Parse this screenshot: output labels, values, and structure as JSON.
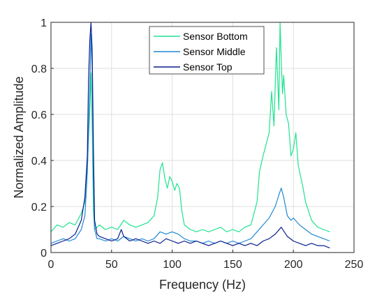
{
  "chart_data": {
    "type": "line",
    "xlabel": "Frequency (Hz)",
    "ylabel": "Normalized Amplitude",
    "xlim": [
      0,
      250
    ],
    "ylim": [
      0,
      1
    ],
    "x_ticks": [
      "0",
      "50",
      "100",
      "150",
      "200",
      "250"
    ],
    "y_ticks": [
      "0",
      "0.2",
      "0.4",
      "0.6",
      "0.8",
      "1"
    ],
    "grid": true,
    "legend": "top-center",
    "series": [
      {
        "name": "Sensor Bottom",
        "color": "#1de38f",
        "x": [
          0,
          5,
          10,
          15,
          20,
          25,
          28,
          30,
          32,
          33,
          34,
          35,
          36,
          38,
          40,
          45,
          50,
          55,
          60,
          65,
          70,
          75,
          80,
          85,
          88,
          90,
          92,
          94,
          96,
          98,
          100,
          102,
          104,
          106,
          108,
          110,
          115,
          120,
          125,
          130,
          135,
          140,
          145,
          150,
          155,
          160,
          165,
          170,
          172,
          175,
          178,
          180,
          182,
          184,
          186,
          188,
          189,
          190,
          191,
          192,
          194,
          196,
          198,
          200,
          202,
          204,
          206,
          208,
          210,
          215,
          220,
          225,
          230
        ],
        "y": [
          0.09,
          0.12,
          0.11,
          0.13,
          0.12,
          0.17,
          0.22,
          0.38,
          0.62,
          0.78,
          0.55,
          0.18,
          0.1,
          0.11,
          0.12,
          0.1,
          0.11,
          0.1,
          0.14,
          0.12,
          0.11,
          0.12,
          0.13,
          0.16,
          0.24,
          0.36,
          0.39,
          0.32,
          0.28,
          0.33,
          0.31,
          0.27,
          0.3,
          0.28,
          0.18,
          0.12,
          0.1,
          0.09,
          0.1,
          0.09,
          0.1,
          0.11,
          0.09,
          0.1,
          0.09,
          0.11,
          0.12,
          0.22,
          0.35,
          0.42,
          0.48,
          0.52,
          0.7,
          0.55,
          0.89,
          0.62,
          1.0,
          0.84,
          0.69,
          0.77,
          0.6,
          0.56,
          0.42,
          0.45,
          0.52,
          0.38,
          0.33,
          0.28,
          0.22,
          0.14,
          0.11,
          0.1,
          0.09
        ]
      },
      {
        "name": "Sensor Middle",
        "color": "#1e88d4",
        "x": [
          0,
          5,
          10,
          15,
          20,
          25,
          28,
          30,
          32,
          33,
          34,
          35,
          36,
          38,
          40,
          45,
          50,
          55,
          60,
          65,
          70,
          75,
          80,
          85,
          90,
          95,
          100,
          105,
          110,
          115,
          120,
          125,
          130,
          135,
          140,
          145,
          150,
          155,
          160,
          165,
          170,
          175,
          180,
          185,
          188,
          190,
          192,
          195,
          198,
          200,
          205,
          210,
          215,
          220,
          225,
          230
        ],
        "y": [
          0.04,
          0.05,
          0.06,
          0.05,
          0.06,
          0.1,
          0.16,
          0.35,
          0.7,
          0.95,
          0.8,
          0.3,
          0.1,
          0.06,
          0.06,
          0.05,
          0.06,
          0.05,
          0.07,
          0.06,
          0.05,
          0.06,
          0.05,
          0.06,
          0.09,
          0.08,
          0.09,
          0.08,
          0.06,
          0.05,
          0.05,
          0.04,
          0.05,
          0.04,
          0.05,
          0.04,
          0.05,
          0.04,
          0.05,
          0.06,
          0.09,
          0.12,
          0.15,
          0.2,
          0.25,
          0.28,
          0.24,
          0.16,
          0.14,
          0.15,
          0.12,
          0.1,
          0.08,
          0.07,
          0.06,
          0.05
        ]
      },
      {
        "name": "Sensor Top",
        "color": "#0a1d8c",
        "x": [
          0,
          5,
          10,
          15,
          20,
          25,
          28,
          30,
          31,
          32,
          33,
          34,
          35,
          36,
          38,
          40,
          45,
          50,
          55,
          58,
          60,
          65,
          70,
          75,
          80,
          85,
          90,
          95,
          100,
          105,
          110,
          115,
          120,
          125,
          130,
          135,
          140,
          145,
          150,
          155,
          160,
          165,
          170,
          175,
          180,
          185,
          190,
          195,
          200,
          205,
          210,
          215,
          220,
          225,
          230
        ],
        "y": [
          0.03,
          0.04,
          0.05,
          0.06,
          0.08,
          0.14,
          0.24,
          0.42,
          0.75,
          0.92,
          1.0,
          0.88,
          0.45,
          0.14,
          0.08,
          0.07,
          0.06,
          0.05,
          0.06,
          0.1,
          0.07,
          0.05,
          0.06,
          0.05,
          0.04,
          0.05,
          0.04,
          0.06,
          0.05,
          0.04,
          0.05,
          0.04,
          0.05,
          0.04,
          0.03,
          0.04,
          0.05,
          0.04,
          0.03,
          0.04,
          0.03,
          0.04,
          0.03,
          0.05,
          0.06,
          0.08,
          0.11,
          0.07,
          0.05,
          0.04,
          0.03,
          0.04,
          0.03,
          0.03,
          0.02
        ]
      }
    ]
  }
}
